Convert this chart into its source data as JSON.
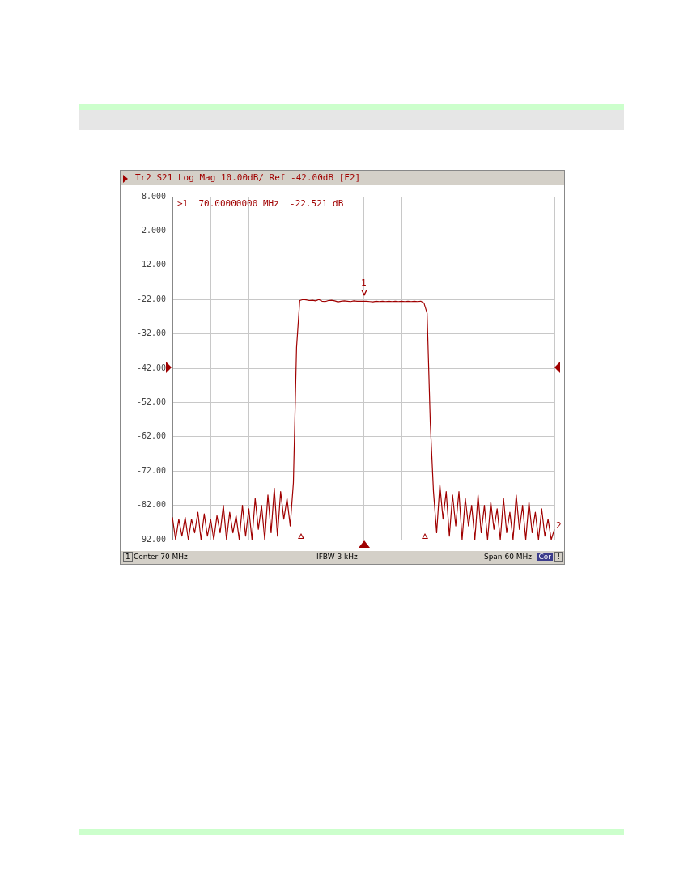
{
  "chart_data": {
    "type": "line",
    "title": "Tr2 S21 Log Mag 10.00dB/ Ref -42.00dB [F2]",
    "annotations": [
      ">1  70.00000000 MHz  -22.521 dB",
      "1",
      "2",
      "1",
      "Center 70 MHz",
      "IFBW 3 kHz",
      "Span 60 MHz",
      "Cor",
      "!"
    ],
    "categories": [
      null,
      null,
      null,
      null,
      null,
      null,
      null,
      null,
      null,
      null,
      null,
      null,
      null,
      null,
      null,
      null,
      null,
      null,
      null,
      null,
      null,
      null,
      null,
      null,
      null,
      null,
      null,
      null,
      null,
      null,
      null,
      null,
      null,
      null,
      null,
      null,
      null,
      null,
      null,
      null,
      null,
      null,
      null,
      null,
      null,
      null,
      null,
      null,
      null,
      null,
      null,
      null,
      null,
      null,
      null,
      null,
      null,
      null,
      null,
      null,
      null,
      null,
      null,
      null,
      null,
      null,
      null,
      null,
      null,
      null,
      null,
      null,
      null,
      null,
      null,
      null,
      null,
      null,
      null,
      null,
      null,
      null,
      null,
      null,
      null,
      null,
      null,
      null,
      null,
      null,
      null,
      null,
      null,
      null,
      null,
      null,
      null,
      null,
      null,
      null,
      null,
      null,
      null,
      null,
      null,
      null,
      null,
      null,
      null,
      null,
      null,
      null,
      null,
      null,
      null,
      null,
      null,
      null,
      null,
      null,
      null
    ],
    "ylim": [
      -92,
      8
    ],
    "yticks": [
      {
        "value": 8,
        "label": "8.000"
      },
      {
        "value": -2,
        "label": "-2.000"
      },
      {
        "value": -12,
        "label": "-12.00"
      },
      {
        "value": -22,
        "label": "-22.00"
      },
      {
        "value": -32,
        "label": "-32.00"
      },
      {
        "value": -42,
        "label": "-42.00"
      },
      {
        "value": -52,
        "label": "-52.00"
      },
      {
        "value": -62,
        "label": "-62.00"
      },
      {
        "value": -72,
        "label": "-72.00"
      },
      {
        "value": -82,
        "label": "-82.00"
      },
      {
        "value": -92,
        "label": "-92.00"
      }
    ],
    "tick_labels": "y",
    "grid": true,
    "legend": false,
    "marker": "none",
    "line_style": "solid",
    "series": [
      {
        "color": "#a00000",
        "values": [
          -85.5,
          -92,
          -86,
          -91,
          -85.5,
          -92,
          -86,
          -90,
          -84,
          -92,
          -84.5,
          -91,
          -86,
          -92,
          -85,
          -90,
          -82,
          -92,
          -84,
          -90,
          -85,
          -92,
          -82,
          -91,
          -83,
          -92,
          -80,
          -89,
          -82,
          -92,
          -79,
          -90,
          -77,
          -91,
          -78,
          -86,
          -80,
          -88,
          -75.5,
          -36,
          -22.3,
          -22,
          -22.1,
          -22.3,
          -22.2,
          -22.4,
          -22,
          -22.5,
          -22.6,
          -22.3,
          -22.2,
          -22.4,
          -22.7,
          -22.5,
          -22.4,
          -22.5,
          -22.6,
          -22.4,
          -22.5,
          -22.5,
          -22.5,
          -22.5,
          -22.6,
          -22.7,
          -22.5,
          -22.6,
          -22.5,
          -22.6,
          -22.5,
          -22.6,
          -22.5,
          -22.6,
          -22.5,
          -22.6,
          -22.5,
          -22.6,
          -22.5,
          -22.6,
          -22.5,
          -23,
          -26,
          -58,
          -78,
          -90,
          -76,
          -86,
          -78,
          -91,
          -79,
          -88,
          -78,
          -92,
          -80,
          -88,
          -82,
          -92,
          -79,
          -90,
          -82,
          -92,
          -81,
          -89,
          -83,
          -92,
          -80,
          -90,
          -84,
          -92,
          -79,
          -89,
          -82,
          -92,
          -81,
          -90,
          -84,
          -92,
          -83,
          -91,
          -86,
          -92,
          -89
        ]
      }
    ]
  }
}
